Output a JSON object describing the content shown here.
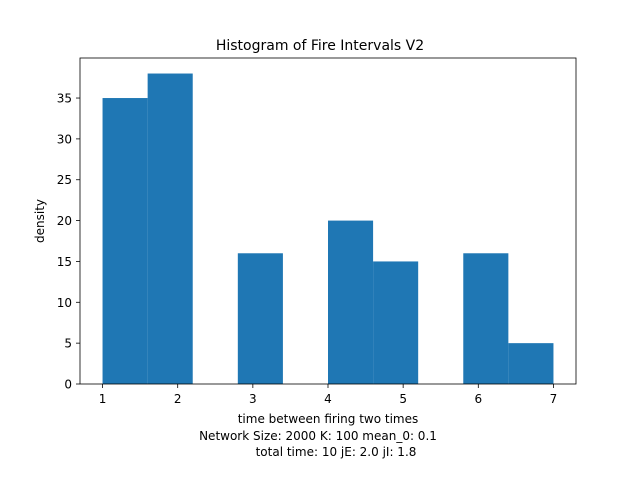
{
  "chart_data": {
    "type": "bar",
    "title": "Histogram of Fire Intervals V2",
    "xlabel": "time between firing two times",
    "xlabel_lines": [
      "Network Size: 2000  K: 100  mean_0: 0.1",
      "total time: 10   jE: 2.0   jI: 1.8"
    ],
    "ylabel": "density",
    "xlim": [
      0.7,
      7.3
    ],
    "ylim": [
      0,
      39.9
    ],
    "xticks": [
      1,
      2,
      3,
      4,
      5,
      6,
      7
    ],
    "yticks": [
      0,
      5,
      10,
      15,
      20,
      25,
      30,
      35
    ],
    "bar_color": "#1f77b4",
    "bins": [
      {
        "x0": 1.0,
        "x1": 1.6,
        "value": 35
      },
      {
        "x0": 1.6,
        "x1": 2.2,
        "value": 38
      },
      {
        "x0": 2.2,
        "x1": 2.8,
        "value": 0
      },
      {
        "x0": 2.8,
        "x1": 3.4,
        "value": 16
      },
      {
        "x0": 3.4,
        "x1": 4.0,
        "value": 0
      },
      {
        "x0": 4.0,
        "x1": 4.6,
        "value": 20
      },
      {
        "x0": 4.6,
        "x1": 5.2,
        "value": 15
      },
      {
        "x0": 5.2,
        "x1": 5.8,
        "value": 0
      },
      {
        "x0": 5.8,
        "x1": 6.4,
        "value": 16
      },
      {
        "x0": 6.4,
        "x1": 7.0,
        "value": 5
      }
    ]
  }
}
